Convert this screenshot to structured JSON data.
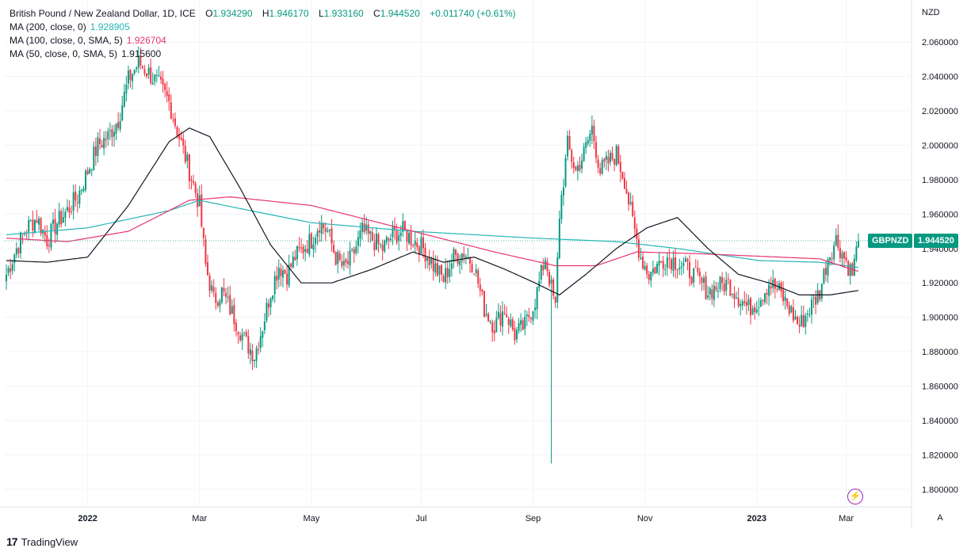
{
  "legend": {
    "title": "British Pound / New Zealand Dollar, 1D, ICE",
    "o_label": "O",
    "o": "1.934290",
    "h_label": "H",
    "h": "1.946170",
    "l_label": "L",
    "l": "1.933160",
    "c_label": "C",
    "c": "1.944520",
    "change": "+0.011740 (+0.61%)",
    "ma200_label": "MA (200, close, 0)",
    "ma200_value": "1.928905",
    "ma100_label": "MA (100, close, 0, SMA, 5)",
    "ma100_value": "1.926704",
    "ma50_label": "MA (50, close, 0, SMA, 5)",
    "ma50_value": "1.915600"
  },
  "currency": "NZD",
  "price_tag": {
    "symbol": "GBPNZD",
    "value": "1.944520"
  },
  "auto_button": "A",
  "brand": "TradingView",
  "colors": {
    "up": "#089981",
    "down": "#f23645",
    "ma200": "#26b5b5",
    "ma100": "#e6346f",
    "ma50": "#131722",
    "grid": "#f0f3fa"
  },
  "chart_data": {
    "type": "candlestick",
    "title": "British Pound / New Zealand Dollar, 1D, ICE",
    "ylim": [
      1.79,
      2.07
    ],
    "y_ticks": [
      "2.060000",
      "2.040000",
      "2.020000",
      "2.000000",
      "1.980000",
      "1.960000",
      "1.940000",
      "1.920000",
      "1.900000",
      "1.880000",
      "1.860000",
      "1.840000",
      "1.820000",
      "1.800000"
    ],
    "x_ticks": [
      "2022",
      "Mar",
      "May",
      "Jul",
      "Sep",
      "Nov",
      "2023",
      "Mar"
    ],
    "x_tick_index": [
      40,
      95,
      150,
      204,
      259,
      314,
      369,
      413
    ],
    "grid": true,
    "close_series": [
      [
        0,
        1.925
      ],
      [
        5,
        1.94
      ],
      [
        10,
        1.952
      ],
      [
        15,
        1.958
      ],
      [
        20,
        1.945
      ],
      [
        25,
        1.955
      ],
      [
        30,
        1.962
      ],
      [
        35,
        1.97
      ],
      [
        40,
        1.985
      ],
      [
        45,
        2.0
      ],
      [
        50,
        2.005
      ],
      [
        55,
        2.015
      ],
      [
        60,
        2.038
      ],
      [
        65,
        2.048
      ],
      [
        70,
        2.042
      ],
      [
        75,
        2.035
      ],
      [
        80,
        2.025
      ],
      [
        85,
        2.005
      ],
      [
        90,
        1.985
      ],
      [
        95,
        1.965
      ],
      [
        98,
        1.93
      ],
      [
        102,
        1.91
      ],
      [
        106,
        1.915
      ],
      [
        110,
        1.905
      ],
      [
        114,
        1.895
      ],
      [
        118,
        1.885
      ],
      [
        122,
        1.878
      ],
      [
        126,
        1.895
      ],
      [
        130,
        1.915
      ],
      [
        134,
        1.93
      ],
      [
        138,
        1.925
      ],
      [
        142,
        1.935
      ],
      [
        146,
        1.94
      ],
      [
        150,
        1.945
      ],
      [
        154,
        1.955
      ],
      [
        158,
        1.95
      ],
      [
        162,
        1.935
      ],
      [
        166,
        1.928
      ],
      [
        170,
        1.935
      ],
      [
        175,
        1.95
      ],
      [
        180,
        1.945
      ],
      [
        185,
        1.94
      ],
      [
        190,
        1.948
      ],
      [
        195,
        1.95
      ],
      [
        200,
        1.945
      ],
      [
        205,
        1.94
      ],
      [
        210,
        1.93
      ],
      [
        215,
        1.922
      ],
      [
        220,
        1.935
      ],
      [
        225,
        1.938
      ],
      [
        230,
        1.93
      ],
      [
        235,
        1.905
      ],
      [
        240,
        1.895
      ],
      [
        245,
        1.905
      ],
      [
        250,
        1.89
      ],
      [
        255,
        1.895
      ],
      [
        260,
        1.91
      ],
      [
        265,
        1.935
      ],
      [
        270,
        1.905
      ],
      [
        272,
        1.96
      ],
      [
        276,
        2.0
      ],
      [
        280,
        1.985
      ],
      [
        284,
        1.995
      ],
      [
        288,
        2.01
      ],
      [
        292,
        1.985
      ],
      [
        296,
        1.99
      ],
      [
        300,
        1.995
      ],
      [
        304,
        1.98
      ],
      [
        308,
        1.955
      ],
      [
        312,
        1.935
      ],
      [
        316,
        1.925
      ],
      [
        320,
        1.93
      ],
      [
        325,
        1.935
      ],
      [
        330,
        1.932
      ],
      [
        335,
        1.928
      ],
      [
        340,
        1.922
      ],
      [
        345,
        1.915
      ],
      [
        350,
        1.918
      ],
      [
        355,
        1.92
      ],
      [
        360,
        1.912
      ],
      [
        365,
        1.905
      ],
      [
        370,
        1.91
      ],
      [
        375,
        1.92
      ],
      [
        380,
        1.915
      ],
      [
        385,
        1.905
      ],
      [
        390,
        1.895
      ],
      [
        395,
        1.905
      ],
      [
        400,
        1.915
      ],
      [
        404,
        1.935
      ],
      [
        408,
        1.945
      ],
      [
        412,
        1.935
      ],
      [
        416,
        1.925
      ],
      [
        419,
        1.9445
      ]
    ],
    "spikes": [
      {
        "index": 268,
        "low": 1.815
      }
    ],
    "series": [
      {
        "name": "MA (200, close, 0)",
        "points": [
          [
            0,
            1.948
          ],
          [
            40,
            1.952
          ],
          [
            80,
            1.962
          ],
          [
            95,
            1.968
          ],
          [
            120,
            1.962
          ],
          [
            150,
            1.955
          ],
          [
            200,
            1.95
          ],
          [
            260,
            1.946
          ],
          [
            300,
            1.944
          ],
          [
            330,
            1.94
          ],
          [
            370,
            1.933
          ],
          [
            400,
            1.932
          ],
          [
            419,
            1.929
          ]
        ]
      },
      {
        "name": "MA (100, close, 0, SMA, 5)",
        "points": [
          [
            0,
            1.946
          ],
          [
            30,
            1.944
          ],
          [
            60,
            1.95
          ],
          [
            90,
            1.968
          ],
          [
            110,
            1.97
          ],
          [
            150,
            1.965
          ],
          [
            200,
            1.95
          ],
          [
            240,
            1.938
          ],
          [
            270,
            1.93
          ],
          [
            290,
            1.93
          ],
          [
            310,
            1.938
          ],
          [
            340,
            1.937
          ],
          [
            380,
            1.935
          ],
          [
            400,
            1.934
          ],
          [
            419,
            1.9267
          ]
        ]
      },
      {
        "name": "MA (50, close, 0, SMA, 5)",
        "points": [
          [
            0,
            1.933
          ],
          [
            20,
            1.932
          ],
          [
            40,
            1.935
          ],
          [
            60,
            1.965
          ],
          [
            80,
            2.002
          ],
          [
            90,
            2.01
          ],
          [
            100,
            2.005
          ],
          [
            115,
            1.975
          ],
          [
            130,
            1.942
          ],
          [
            145,
            1.92
          ],
          [
            160,
            1.92
          ],
          [
            180,
            1.928
          ],
          [
            200,
            1.938
          ],
          [
            215,
            1.932
          ],
          [
            230,
            1.935
          ],
          [
            245,
            1.928
          ],
          [
            260,
            1.92
          ],
          [
            272,
            1.913
          ],
          [
            285,
            1.925
          ],
          [
            300,
            1.94
          ],
          [
            315,
            1.952
          ],
          [
            330,
            1.958
          ],
          [
            345,
            1.94
          ],
          [
            360,
            1.925
          ],
          [
            375,
            1.92
          ],
          [
            390,
            1.913
          ],
          [
            405,
            1.913
          ],
          [
            419,
            1.9156
          ]
        ]
      }
    ]
  }
}
